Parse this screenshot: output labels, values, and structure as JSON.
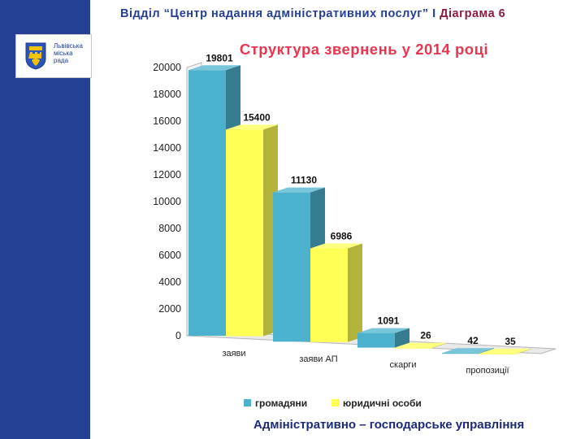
{
  "header": {
    "text": "Відділ “Центр надання адміністративних послуг”",
    "separator": "І",
    "diagram": "Діаграма 6"
  },
  "logo": {
    "text": "Львівська\nміська\nрада"
  },
  "footer": {
    "text": "Адміністративно – господарське управління"
  },
  "colors": {
    "sidebar": "#243f93",
    "series1": "#4cb1cd",
    "series2": "#ffff55",
    "title": "#e8364f"
  },
  "chart_data": {
    "type": "bar",
    "title": "Структура  звернень  у 2014 році",
    "categories": [
      "заяви",
      "заяви АП",
      "скарги",
      "пропозиції"
    ],
    "series": [
      {
        "name": "громадяни",
        "values": [
          19801,
          11130,
          1091,
          42
        ]
      },
      {
        "name": "юридичні особи",
        "values": [
          15400,
          6986,
          26,
          35
        ]
      }
    ],
    "ylim": [
      0,
      20000
    ],
    "yticks": [
      0,
      2000,
      4000,
      6000,
      8000,
      10000,
      12000,
      14000,
      16000,
      18000,
      20000
    ],
    "legend": "bottom",
    "grid": false,
    "style": "3d"
  }
}
